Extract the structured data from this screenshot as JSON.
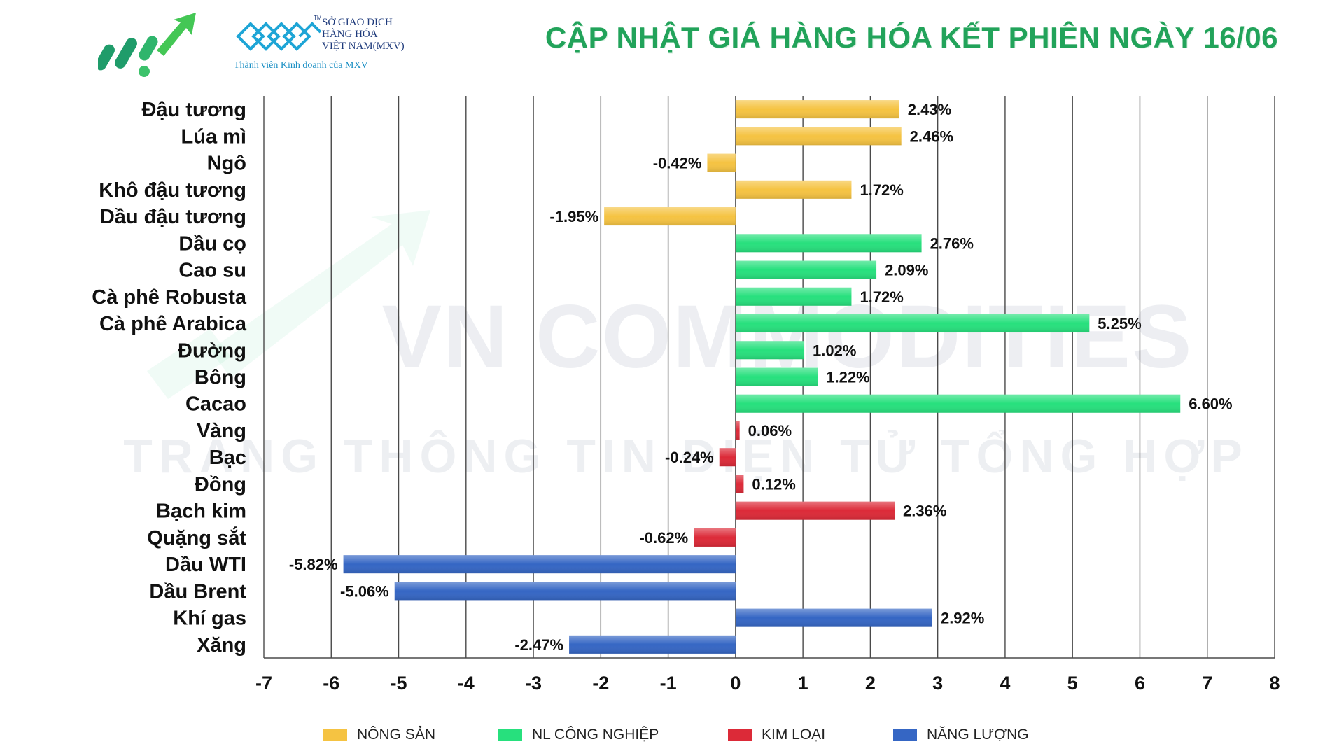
{
  "header": {
    "title": "CẬP NHẬT GIÁ HÀNG HÓA KẾT PHIÊN NGÀY 16/06",
    "mxv_name_lines": [
      "SỞ GIAO DỊCH",
      "HÀNG HÓA",
      "VIỆT NAM(MXV)"
    ],
    "mxv_member": "Thành viên Kinh doanh của MXV",
    "tm": "TM"
  },
  "watermark": {
    "line1": "VN COMMODITIES",
    "line2": "TRANG THÔNG TIN ĐIỆN TỬ TỔNG HỢP"
  },
  "colors": {
    "nong_san": "#f5c342",
    "nl_cong_nghiep": "#27e07d",
    "kim_loai": "#dc2a38",
    "nang_luong": "#3566c4",
    "title_green": "#22a35a"
  },
  "legend": [
    {
      "label": "NÔNG SẢN",
      "color": "#f5c342"
    },
    {
      "label": "NL CÔNG NGHIỆP",
      "color": "#27e07d"
    },
    {
      "label": "KIM LOẠI",
      "color": "#dc2a38"
    },
    {
      "label": "NĂNG LƯỢNG",
      "color": "#3566c4"
    }
  ],
  "chart_data": {
    "type": "bar",
    "orientation": "horizontal",
    "title": "CẬP NHẬT GIÁ HÀNG HÓA KẾT PHIÊN NGÀY 16/06",
    "xlim": [
      -7,
      8
    ],
    "xticks": [
      "-7",
      "-6",
      "-5",
      "-4",
      "-3",
      "-2",
      "-1",
      "0",
      "1",
      "2",
      "3",
      "4",
      "5",
      "6",
      "7",
      "8"
    ],
    "grid": "vertical",
    "legend_position": "bottom",
    "categories": [
      "Đậu tương",
      "Lúa mì",
      "Ngô",
      "Khô đậu tương",
      "Dầu đậu tương",
      "Dầu cọ",
      "Cao su",
      "Cà phê Robusta",
      "Cà phê Arabica",
      "Đường",
      "Bông",
      "Cacao",
      "Vàng",
      "Bạc",
      "Đồng",
      "Bạch kim",
      "Quặng sắt",
      "Dầu WTI",
      "Dầu Brent",
      "Khí gas",
      "Xăng"
    ],
    "values": [
      2.43,
      2.46,
      -0.42,
      1.72,
      -1.95,
      2.76,
      2.09,
      1.72,
      5.25,
      1.02,
      1.22,
      6.6,
      0.06,
      -0.24,
      0.12,
      2.36,
      -0.62,
      -5.82,
      -5.06,
      2.92,
      -2.47
    ],
    "labels": [
      "2.43%",
      "2.46%",
      "-0.42%",
      "1.72%",
      "-1.95%",
      "2.76%",
      "2.09%",
      "1.72%",
      "5.25%",
      "1.02%",
      "1.22%",
      "6.60%",
      "0.06%",
      "-0.24%",
      "0.12%",
      "2.36%",
      "-0.62%",
      "-5.82%",
      "-5.06%",
      "2.92%",
      "-2.47%"
    ],
    "groups": [
      "NÔNG SẢN",
      "NÔNG SẢN",
      "NÔNG SẢN",
      "NÔNG SẢN",
      "NÔNG SẢN",
      "NL CÔNG NGHIỆP",
      "NL CÔNG NGHIỆP",
      "NL CÔNG NGHIỆP",
      "NL CÔNG NGHIỆP",
      "NL CÔNG NGHIỆP",
      "NL CÔNG NGHIỆP",
      "NL CÔNG NGHIỆP",
      "KIM LOẠI",
      "KIM LOẠI",
      "KIM LOẠI",
      "KIM LOẠI",
      "KIM LOẠI",
      "NĂNG LƯỢNG",
      "NĂNG LƯỢNG",
      "NĂNG LƯỢNG",
      "NĂNG LƯỢNG"
    ]
  }
}
